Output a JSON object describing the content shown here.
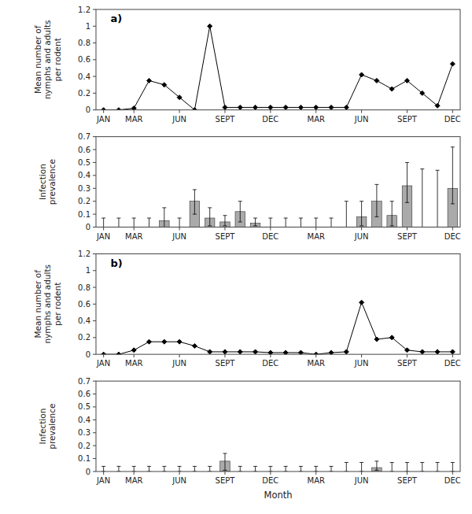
{
  "chart_data": [
    {
      "type": "line",
      "categories": [
        "JAN",
        null,
        "MAR",
        null,
        null,
        "JUN",
        null,
        null,
        "SEPT",
        null,
        null,
        "DEC",
        null,
        null,
        "MAR",
        null,
        null,
        "JUN",
        null,
        null,
        "SEPT",
        null,
        null,
        "DEC"
      ],
      "values": [
        0.0,
        0.0,
        0.02,
        0.35,
        0.3,
        0.15,
        0.0,
        1.0,
        0.03,
        0.03,
        0.03,
        0.03,
        0.03,
        0.03,
        0.03,
        0.03,
        0.03,
        0.42,
        0.35,
        0.25,
        0.35,
        0.2,
        0.05,
        0.55
      ],
      "color": "#000000",
      "marker": "diamond",
      "ylim": [
        0,
        1.2
      ],
      "yticks": [
        0,
        0.2,
        0.4,
        0.6,
        0.8,
        1,
        1.2
      ],
      "y_label": "Mean number of\nnymphs and adults\nper rodent",
      "annotations": [
        "a)"
      ],
      "grid": false
    },
    {
      "type": "bar",
      "categories": [
        "JAN",
        null,
        "MAR",
        null,
        null,
        "JUN",
        null,
        null,
        "SEPT",
        null,
        null,
        "DEC",
        null,
        null,
        "MAR",
        null,
        null,
        "JUN",
        null,
        null,
        "SEPT",
        null,
        null,
        "DEC"
      ],
      "values": [
        0.0,
        0.0,
        0.0,
        0.0,
        0.05,
        0.0,
        0.2,
        0.07,
        0.04,
        0.12,
        0.03,
        0.0,
        0.0,
        0.0,
        0.0,
        0.0,
        0.0,
        0.08,
        0.2,
        0.09,
        0.32,
        0.0,
        0.0,
        0.3
      ],
      "error_low": [
        0.0,
        0.0,
        0.0,
        0.0,
        0.05,
        0.0,
        0.1,
        0.06,
        0.03,
        0.08,
        0.02,
        0.0,
        0.0,
        0.0,
        0.0,
        0.0,
        0.0,
        0.07,
        0.12,
        0.08,
        0.13,
        0.0,
        0.0,
        0.12
      ],
      "error_high": [
        0.07,
        0.07,
        0.07,
        0.07,
        0.1,
        0.07,
        0.09,
        0.08,
        0.05,
        0.08,
        0.04,
        0.07,
        0.07,
        0.07,
        0.07,
        0.07,
        0.2,
        0.12,
        0.13,
        0.11,
        0.18,
        0.45,
        0.44,
        0.32
      ],
      "color": "#aaaaaa",
      "ylim": [
        0,
        0.7
      ],
      "yticks": [
        0,
        0.1,
        0.2,
        0.3,
        0.4,
        0.5,
        0.6,
        0.7
      ],
      "y_label": "Infection\nprevalence",
      "grid": false
    },
    {
      "type": "line",
      "categories": [
        "JAN",
        null,
        "MAR",
        null,
        null,
        "JUN",
        null,
        null,
        "SEPT",
        null,
        null,
        "DEC",
        null,
        null,
        "MAR",
        null,
        null,
        "JUN",
        null,
        null,
        "SEPT",
        null,
        null,
        "DEC"
      ],
      "values": [
        0.0,
        0.0,
        0.05,
        0.15,
        0.15,
        0.15,
        0.1,
        0.03,
        0.03,
        0.03,
        0.03,
        0.02,
        0.02,
        0.02,
        0.0,
        0.02,
        0.03,
        0.62,
        0.18,
        0.2,
        0.05,
        0.03,
        0.03,
        0.03
      ],
      "color": "#000000",
      "marker": "diamond",
      "ylim": [
        0,
        1.2
      ],
      "yticks": [
        0,
        0.2,
        0.4,
        0.6,
        0.8,
        1,
        1.2
      ],
      "y_label": "Mean number of\nnymphs and adults\nper rodent",
      "annotations": [
        "b)"
      ],
      "grid": false
    },
    {
      "type": "bar",
      "categories": [
        "JAN",
        null,
        "MAR",
        null,
        null,
        "JUN",
        null,
        null,
        "SEPT",
        null,
        null,
        "DEC",
        null,
        null,
        "MAR",
        null,
        null,
        "JUN",
        null,
        null,
        "SEPT",
        null,
        null,
        "DEC"
      ],
      "values": [
        0.0,
        0.0,
        0.0,
        0.0,
        0.0,
        0.0,
        0.0,
        0.0,
        0.08,
        0.0,
        0.0,
        0.0,
        0.0,
        0.0,
        0.0,
        0.0,
        0.0,
        0.0,
        0.03,
        0.0,
        0.0,
        0.0,
        0.0,
        0.0
      ],
      "error_low": [
        0.0,
        0.0,
        0.0,
        0.0,
        0.0,
        0.0,
        0.0,
        0.0,
        0.07,
        0.0,
        0.0,
        0.0,
        0.0,
        0.0,
        0.0,
        0.0,
        0.0,
        0.0,
        0.02,
        0.0,
        0.0,
        0.0,
        0.0,
        0.0
      ],
      "error_high": [
        0.04,
        0.04,
        0.04,
        0.04,
        0.04,
        0.04,
        0.04,
        0.04,
        0.06,
        0.04,
        0.04,
        0.04,
        0.04,
        0.04,
        0.04,
        0.04,
        0.07,
        0.07,
        0.05,
        0.07,
        0.07,
        0.07,
        0.07,
        0.07
      ],
      "color": "#aaaaaa",
      "ylim": [
        0,
        0.7
      ],
      "yticks": [
        0,
        0.1,
        0.2,
        0.3,
        0.4,
        0.5,
        0.6,
        0.7
      ],
      "y_label": "Infection\nprevalence",
      "x_label": "Month",
      "grid": false
    }
  ]
}
